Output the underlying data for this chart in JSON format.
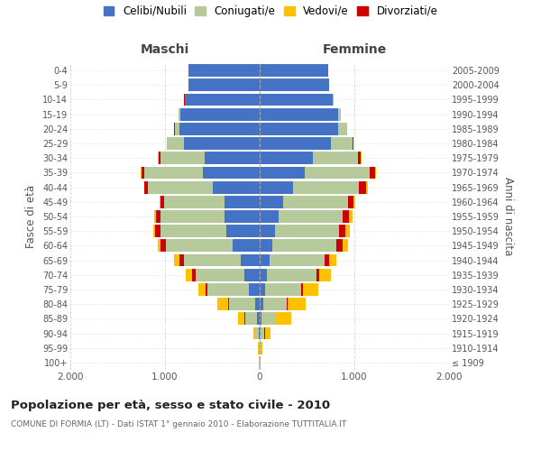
{
  "age_groups": [
    "100+",
    "95-99",
    "90-94",
    "85-89",
    "80-84",
    "75-79",
    "70-74",
    "65-69",
    "60-64",
    "55-59",
    "50-54",
    "45-49",
    "40-44",
    "35-39",
    "30-34",
    "25-29",
    "20-24",
    "15-19",
    "10-14",
    "5-9",
    "0-4"
  ],
  "birth_years": [
    "≤ 1909",
    "1910-1914",
    "1915-1919",
    "1920-1924",
    "1925-1929",
    "1930-1934",
    "1935-1939",
    "1940-1944",
    "1945-1949",
    "1950-1954",
    "1955-1959",
    "1960-1964",
    "1965-1969",
    "1970-1974",
    "1975-1979",
    "1980-1984",
    "1985-1989",
    "1990-1994",
    "1995-1999",
    "2000-2004",
    "2005-2009"
  ],
  "colors": {
    "celibe": "#4472c4",
    "coniugato": "#b5c99a",
    "vedovo": "#ffc000",
    "divorziato": "#cc0000"
  },
  "maschi": {
    "celibe": [
      2,
      4,
      10,
      25,
      45,
      110,
      160,
      200,
      290,
      350,
      370,
      370,
      500,
      600,
      580,
      800,
      850,
      840,
      790,
      750,
      750
    ],
    "coniugato": [
      3,
      8,
      30,
      130,
      280,
      440,
      520,
      600,
      700,
      700,
      680,
      640,
      680,
      620,
      470,
      170,
      50,
      15,
      5,
      2,
      2
    ],
    "vedovo": [
      2,
      5,
      20,
      70,
      110,
      70,
      65,
      55,
      30,
      20,
      15,
      10,
      8,
      5,
      5,
      5,
      3,
      2,
      1,
      1,
      1
    ],
    "divorziato": [
      0,
      1,
      2,
      5,
      10,
      25,
      35,
      50,
      60,
      55,
      45,
      35,
      35,
      30,
      20,
      5,
      3,
      2,
      1,
      0,
      0
    ]
  },
  "femmine": {
    "nubile": [
      2,
      4,
      12,
      20,
      35,
      60,
      80,
      100,
      130,
      160,
      200,
      250,
      350,
      480,
      560,
      750,
      830,
      830,
      770,
      730,
      720
    ],
    "coniugata": [
      3,
      8,
      40,
      150,
      250,
      380,
      520,
      590,
      680,
      680,
      680,
      680,
      700,
      680,
      480,
      230,
      90,
      20,
      5,
      2,
      2
    ],
    "vedova": [
      5,
      15,
      60,
      160,
      190,
      160,
      120,
      80,
      60,
      50,
      35,
      20,
      15,
      10,
      5,
      5,
      3,
      2,
      1,
      1,
      0
    ],
    "divorziata": [
      0,
      1,
      2,
      5,
      10,
      15,
      30,
      40,
      65,
      65,
      65,
      60,
      75,
      60,
      30,
      10,
      5,
      2,
      1,
      0,
      0
    ]
  },
  "title": "Popolazione per età, sesso e stato civile - 2010",
  "subtitle": "COMUNE DI FORMIA (LT) - Dati ISTAT 1° gennaio 2010 - Elaborazione TUTTITALIA.IT",
  "xlabel_left": "Maschi",
  "xlabel_right": "Femmine",
  "ylabel_left": "Fasce di età",
  "ylabel_right": "Anni di nascita",
  "xlim": 2000,
  "xtick_labels": [
    "2.000",
    "1.000",
    "0",
    "1.000",
    "2.000"
  ],
  "legend_labels": [
    "Celibi/Nubili",
    "Coniugati/e",
    "Vedovi/e",
    "Divorziati/e"
  ],
  "legend_colors": [
    "#4472c4",
    "#b5c99a",
    "#ffc000",
    "#cc0000"
  ],
  "background_color": "#ffffff",
  "grid_color": "#cccccc"
}
